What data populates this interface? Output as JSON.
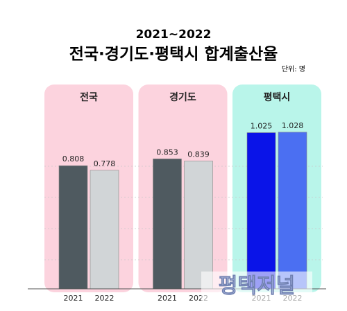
{
  "chart_data": {
    "type": "bar",
    "subtitle": "2021~2022",
    "title": "전국·경기도·평택시 합계출산율",
    "unit": "단위: 명",
    "categories": [
      "전국",
      "경기도",
      "평택시"
    ],
    "panel_colors": [
      "#fcd3de",
      "#fcd3de",
      "#b9f5ea"
    ],
    "series": [
      {
        "name": "2021",
        "color": [
          "#4f5a60",
          "#4f5a60",
          "#0a14e8"
        ],
        "values": [
          0.808,
          0.853,
          1.025
        ]
      },
      {
        "name": "2022",
        "color": [
          "#d1d5d7",
          "#d1d5d7",
          "#4b6ff2"
        ],
        "values": [
          0.778,
          0.839,
          1.028
        ]
      }
    ],
    "ylim": [
      0,
      1.1
    ],
    "watermark": "평택저널"
  }
}
